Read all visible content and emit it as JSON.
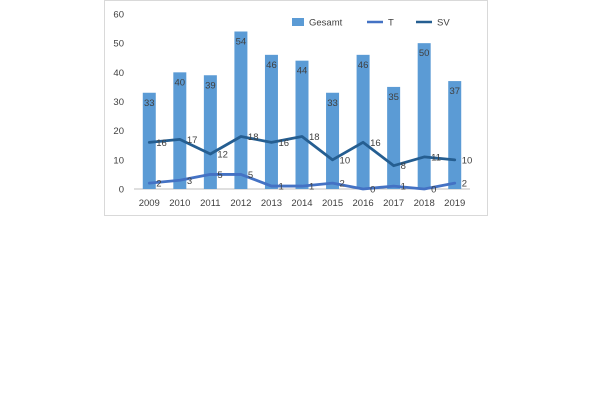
{
  "chart_data": {
    "type": "bar",
    "categories": [
      "2009",
      "2010",
      "2011",
      "2012",
      "2013",
      "2014",
      "2015",
      "2016",
      "2017",
      "2018",
      "2019"
    ],
    "series": [
      {
        "name": "Gesamt",
        "type": "bar",
        "values": [
          33,
          40,
          39,
          54,
          46,
          44,
          33,
          46,
          35,
          50,
          37
        ],
        "color": "#5B9BD5"
      },
      {
        "name": "T",
        "type": "line",
        "values": [
          2,
          3,
          5,
          5,
          1,
          1,
          2,
          0,
          1,
          0,
          2
        ],
        "color": "#4472C4"
      },
      {
        "name": "SV",
        "type": "line",
        "values": [
          16,
          17,
          12,
          18,
          16,
          18,
          10,
          16,
          8,
          11,
          10
        ],
        "color": "#255E91"
      }
    ],
    "ylim": [
      0,
      60
    ],
    "yticks": [
      "0",
      "10",
      "20",
      "30",
      "40",
      "50",
      "60"
    ],
    "legend": {
      "position": "top-right",
      "labels": [
        "Gesamt",
        "T",
        "SV"
      ]
    },
    "grid": false,
    "title": "",
    "xlabel": "",
    "ylabel": ""
  }
}
